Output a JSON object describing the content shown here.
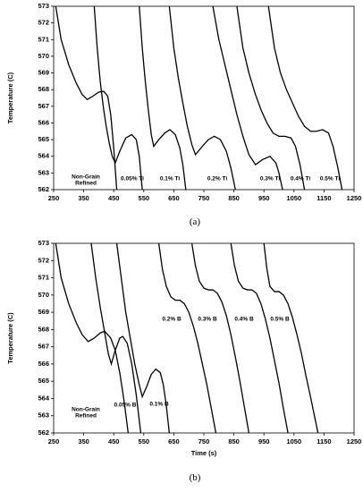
{
  "chart_data": [
    {
      "type": "line",
      "caption": "(a)",
      "ylabel": "Temperature (C)",
      "xlim": [
        250,
        1250
      ],
      "xticks": [
        250,
        350,
        450,
        550,
        650,
        750,
        850,
        950,
        1050,
        1150,
        1250
      ],
      "ylim": [
        562,
        573
      ],
      "yticks": [
        562,
        563,
        564,
        565,
        566,
        567,
        568,
        569,
        570,
        571,
        572,
        573
      ],
      "grid": false,
      "series": [
        {
          "name": "Non-Grain Refined",
          "color": "#000000",
          "x": [
            257,
            275,
            300,
            325,
            345,
            362,
            380,
            400,
            417,
            430,
            440,
            450,
            460
          ],
          "values": [
            573,
            571,
            569.5,
            568.4,
            567.7,
            567.4,
            567.6,
            567.85,
            567.9,
            567.6,
            566.5,
            564.5,
            562
          ]
        },
        {
          "name": "0.05% Ti",
          "color": "#000000",
          "x": [
            385,
            395,
            405,
            415,
            425,
            435,
            445,
            455,
            470,
            490,
            510,
            525,
            535,
            545
          ],
          "values": [
            573,
            570.5,
            568.5,
            567,
            565.8,
            564.8,
            564,
            563.6,
            564.3,
            565.1,
            565.3,
            565,
            564,
            562
          ]
        },
        {
          "name": "0.1% Ti",
          "color": "#000000",
          "x": [
            535,
            545,
            555,
            565,
            575,
            583,
            600,
            620,
            637,
            655,
            670,
            680,
            690
          ],
          "values": [
            573,
            570.5,
            568.5,
            566.8,
            565.3,
            564.6,
            565,
            565.4,
            565.6,
            565.3,
            564.5,
            563.5,
            562
          ]
        },
        {
          "name": "0.2% Ti",
          "color": "#000000",
          "x": [
            635,
            650,
            665,
            680,
            695,
            710,
            722,
            745,
            765,
            785,
            805,
            825,
            840,
            855
          ],
          "values": [
            573,
            570.5,
            568.7,
            567.2,
            565.8,
            564.7,
            564.1,
            564.6,
            565,
            565.2,
            565,
            564.3,
            563.3,
            562
          ]
        },
        {
          "name": "0.3% Ti",
          "color": "#000000",
          "x": [
            780,
            800,
            820,
            840,
            860,
            880,
            900,
            922,
            945,
            970,
            990,
            1000,
            1012
          ],
          "values": [
            573,
            571,
            569.5,
            568,
            566.5,
            565.2,
            564.1,
            563.5,
            563.8,
            564,
            563.6,
            563,
            562
          ]
        },
        {
          "name": "0.4% Ti",
          "color": "#000000",
          "x": [
            860,
            880,
            900,
            920,
            940,
            960,
            980,
            1000,
            1020,
            1040,
            1055,
            1070,
            1085
          ],
          "values": [
            573,
            570.5,
            569,
            567.8,
            566.8,
            566,
            565.4,
            565.2,
            565.2,
            565.1,
            564.6,
            563.5,
            562
          ]
        },
        {
          "name": "0.5% Ti",
          "color": "#000000",
          "x": [
            965,
            985,
            1005,
            1025,
            1045,
            1065,
            1085,
            1105,
            1125,
            1145,
            1165,
            1180,
            1195,
            1210
          ],
          "values": [
            573,
            570.5,
            569,
            568,
            567.2,
            566.4,
            565.8,
            565.5,
            565.5,
            565.6,
            565.4,
            564.6,
            563.4,
            562
          ]
        }
      ]
    },
    {
      "type": "line",
      "caption": "(b)",
      "ylabel": "Temperature (C)",
      "xlabel": "Time (s)",
      "xlim": [
        250,
        1250
      ],
      "xticks": [
        250,
        350,
        450,
        550,
        650,
        750,
        850,
        950,
        1050,
        1150,
        1250
      ],
      "ylim": [
        562,
        573
      ],
      "yticks": [
        562,
        563,
        564,
        565,
        566,
        567,
        568,
        569,
        570,
        571,
        572,
        573
      ],
      "grid": false,
      "series": [
        {
          "name": "Non-Grain Refined",
          "color": "#000000",
          "x": [
            257,
            275,
            300,
            325,
            345,
            365,
            385,
            405,
            420,
            440,
            455,
            470,
            485,
            498
          ],
          "values": [
            573,
            571,
            569.5,
            568.4,
            567.7,
            567.3,
            567.5,
            567.8,
            567.9,
            567.5,
            566.8,
            565.5,
            563.8,
            562
          ]
        },
        {
          "name": "0.05% B",
          "color": "#000000",
          "x": [
            375,
            390,
            405,
            420,
            432,
            442,
            455,
            470,
            480,
            495,
            510,
            525,
            540
          ],
          "values": [
            573,
            571,
            569.3,
            567.8,
            566.6,
            566,
            566.8,
            567.5,
            567.6,
            567.2,
            566,
            564.2,
            562
          ]
        },
        {
          "name": "0.1% B",
          "color": "#000000",
          "x": [
            460,
            475,
            490,
            505,
            520,
            535,
            545,
            560,
            575,
            590,
            605,
            615,
            625,
            635
          ],
          "values": [
            573,
            571,
            569,
            567.5,
            566,
            564.8,
            564.1,
            564.7,
            565.4,
            565.7,
            565.5,
            564.8,
            563.6,
            562
          ]
        },
        {
          "name": "0.2% B",
          "color": "#000000",
          "x": [
            600,
            612,
            625,
            640,
            655,
            670,
            685,
            700,
            715,
            730,
            745,
            760,
            775,
            790
          ],
          "values": [
            573,
            571.5,
            570.5,
            569.9,
            569.7,
            569.7,
            569.5,
            569,
            568.2,
            567.2,
            566,
            564.8,
            563.4,
            562
          ]
        },
        {
          "name": "0.3% B",
          "color": "#000000",
          "x": [
            710,
            722,
            735,
            750,
            765,
            780,
            795,
            810,
            825,
            840,
            855,
            870,
            885,
            900
          ],
          "values": [
            573,
            571.7,
            570.8,
            570.4,
            570.3,
            570.3,
            570.1,
            569.6,
            568.8,
            567.7,
            566.4,
            565,
            563.5,
            562
          ]
        },
        {
          "name": "0.4% B",
          "color": "#000000",
          "x": [
            840,
            852,
            865,
            880,
            895,
            910,
            925,
            940,
            955,
            970,
            985,
            1000,
            1015,
            1030
          ],
          "values": [
            573,
            571.7,
            570.8,
            570.4,
            570.3,
            570.3,
            570.1,
            569.5,
            568.6,
            567.5,
            566.2,
            564.9,
            563.4,
            562
          ]
        },
        {
          "name": "0.5% B",
          "color": "#000000",
          "x": [
            950,
            960,
            970,
            985,
            1000,
            1015,
            1030,
            1045,
            1060,
            1075,
            1090,
            1105,
            1118,
            1130
          ],
          "values": [
            573,
            571.5,
            570.5,
            570.2,
            570.2,
            570,
            569.5,
            568.7,
            567.7,
            566.6,
            565.3,
            564.1,
            563,
            562
          ]
        }
      ]
    }
  ]
}
